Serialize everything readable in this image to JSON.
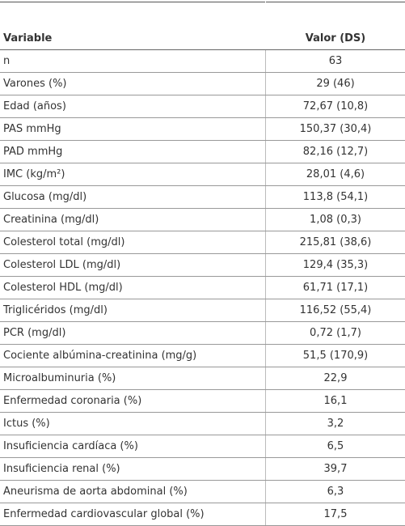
{
  "table": {
    "header": [
      "Variable",
      "Valor (DS)"
    ],
    "rows": [
      [
        "n",
        "63"
      ],
      [
        "Varones (%)",
        "29 (46)"
      ],
      [
        "Edad (años)",
        "72,67 (10,8)"
      ],
      [
        "PAS mmHg",
        "150,37 (30,4)"
      ],
      [
        "PAD mmHg",
        "82,16 (12,7)"
      ],
      [
        "IMC (kg/m²)",
        "28,01 (4,6)"
      ],
      [
        "Glucosa (mg/dl)",
        "113,8 (54,1)"
      ],
      [
        "Creatinina (mg/dl)",
        "1,08 (0,3)"
      ],
      [
        "Colesterol total (mg/dl)",
        "215,81 (38,6)"
      ],
      [
        "Colesterol LDL (mg/dl)",
        "129,4 (35,3)"
      ],
      [
        "Colesterol HDL (mg/dl)",
        "61,71 (17,1)"
      ],
      [
        "Triglicéridos (mg/dl)",
        "116,52 (55,4)"
      ],
      [
        "PCR (mg/dl)",
        "0,72 (1,7)"
      ],
      [
        "Cociente albúmina-creatinina (mg/g)",
        "51,5 (170,9)"
      ],
      [
        "Microalbuminuria (%)",
        "22,9"
      ],
      [
        "Enfermedad coronaria (%)",
        "16,1"
      ],
      [
        "Ictus (%)",
        "3,2"
      ],
      [
        "Insuficiencia cardíaca (%)",
        "6,5"
      ],
      [
        "Insuficiencia renal (%)",
        "39,7"
      ],
      [
        "Aneurisma de aorta abdominal (%)",
        "6,3"
      ],
      [
        "Enfermedad cardiovascular global (%)",
        "17,5"
      ]
    ]
  }
}
